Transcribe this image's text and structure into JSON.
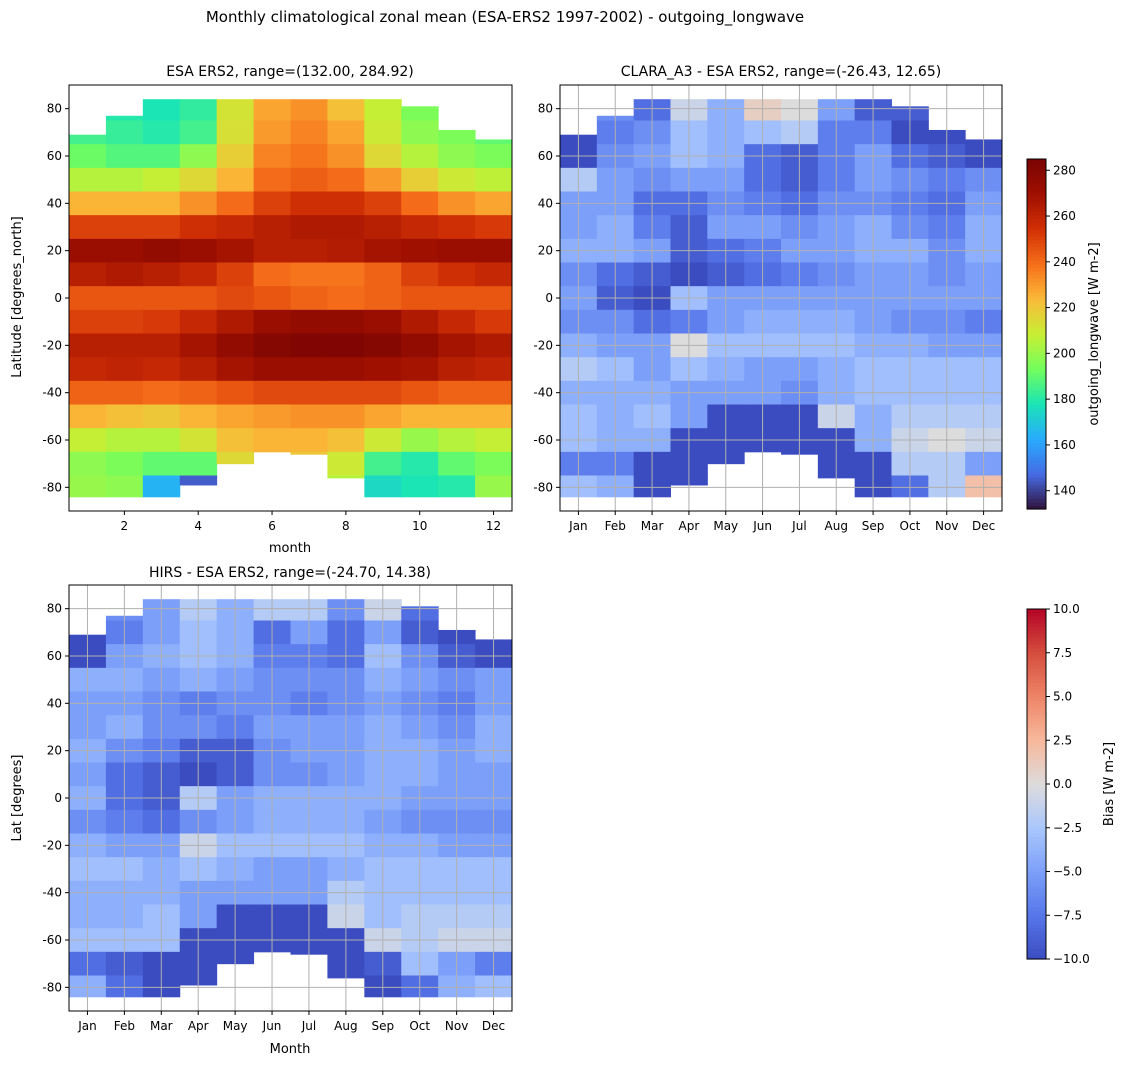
{
  "figure_title": "Monthly climatological zonal mean (ESA-ERS2 1997-2002) - outgoing_longwave",
  "chart_data": [
    {
      "type": "heatmap",
      "title": "ESA ERS2, range=(132.00, 284.92)",
      "xlabel": "month",
      "ylabel": "Latitude [degrees_north]",
      "x": [
        1,
        2,
        3,
        4,
        5,
        6,
        7,
        8,
        9,
        10,
        11,
        12
      ],
      "xticks": [
        2,
        4,
        6,
        8,
        10,
        12
      ],
      "xtick_labels": [
        "2",
        "4",
        "6",
        "8",
        "10",
        "12"
      ],
      "xlim": [
        0.5,
        12.5
      ],
      "ylim": [
        -90,
        90
      ],
      "yticks": [
        80,
        60,
        40,
        20,
        0,
        -20,
        -40,
        -60,
        -80
      ],
      "grid": false,
      "colormap": "turbo",
      "vmin": 132.0,
      "vmax": 284.92,
      "lat_top": [
        69,
        77,
        84,
        84,
        84,
        84,
        84,
        84,
        84,
        81,
        71,
        67
      ],
      "lat_bottom": [
        -84,
        -84,
        -84,
        -79,
        -70,
        -65,
        -66,
        -76,
        -84,
        -84,
        -84,
        -84
      ],
      "lat": [
        80,
        70,
        60,
        50,
        40,
        30,
        20,
        10,
        0,
        -10,
        -20,
        -30,
        -40,
        -50,
        -60,
        -70,
        -80
      ],
      "values": [
        [
          null,
          180,
          178,
          182,
          212,
          228,
          232,
          222,
          208,
          195,
          null,
          null
        ],
        [
          185,
          183,
          180,
          185,
          213,
          230,
          235,
          228,
          210,
          198,
          195,
          190
        ],
        [
          192,
          188,
          188,
          198,
          218,
          235,
          238,
          232,
          215,
          205,
          198,
          195
        ],
        [
          205,
          205,
          208,
          215,
          225,
          240,
          243,
          240,
          230,
          218,
          210,
          207
        ],
        [
          225,
          225,
          225,
          232,
          240,
          250,
          255,
          255,
          250,
          240,
          232,
          228
        ],
        [
          250,
          250,
          250,
          255,
          258,
          262,
          265,
          265,
          262,
          258,
          255,
          252
        ],
        [
          272,
          272,
          275,
          272,
          268,
          262,
          262,
          264,
          268,
          270,
          272,
          272
        ],
        [
          262,
          265,
          262,
          258,
          250,
          240,
          238,
          238,
          242,
          250,
          255,
          258
        ],
        [
          245,
          245,
          245,
          245,
          248,
          245,
          242,
          240,
          242,
          245,
          245,
          245
        ],
        [
          250,
          250,
          252,
          258,
          265,
          272,
          275,
          275,
          272,
          265,
          258,
          252
        ],
        [
          262,
          262,
          262,
          268,
          275,
          280,
          282,
          282,
          280,
          275,
          268,
          265
        ],
        [
          258,
          260,
          258,
          262,
          268,
          272,
          272,
          272,
          270,
          268,
          262,
          260
        ],
        [
          242,
          242,
          240,
          242,
          245,
          248,
          248,
          248,
          248,
          245,
          242,
          242
        ],
        [
          225,
          222,
          220,
          225,
          228,
          230,
          232,
          232,
          228,
          225,
          225,
          225
        ],
        [
          208,
          205,
          205,
          212,
          222,
          225,
          225,
          222,
          210,
          200,
          205,
          208
        ],
        [
          198,
          195,
          190,
          190,
          215,
          null,
          220,
          210,
          185,
          180,
          190,
          195
        ],
        [
          200,
          198,
          165,
          145,
          null,
          null,
          null,
          205,
          175,
          178,
          180,
          200
        ]
      ]
    },
    {
      "type": "heatmap",
      "title": "CLARA_A3 - ESA ERS2, range=(-26.43, 12.65)",
      "xlabel": "",
      "ylabel": "",
      "x": [
        1,
        2,
        3,
        4,
        5,
        6,
        7,
        8,
        9,
        10,
        11,
        12
      ],
      "xticks": [
        1,
        2,
        3,
        4,
        5,
        6,
        7,
        8,
        9,
        10,
        11,
        12
      ],
      "xtick_labels": [
        "Jan",
        "Feb",
        "Mar",
        "Apr",
        "May",
        "Jun",
        "Jul",
        "Aug",
        "Sep",
        "Oct",
        "Nov",
        "Dec"
      ],
      "xlim": [
        0.5,
        12.5
      ],
      "ylim": [
        -90,
        90
      ],
      "yticks": [
        80,
        60,
        40,
        20,
        0,
        -20,
        -40,
        -60,
        -80
      ],
      "grid": true,
      "colormap": "coolwarm",
      "vmin": -10,
      "vmax": 10,
      "lat_top": [
        69,
        77,
        84,
        84,
        84,
        84,
        84,
        84,
        84,
        81,
        71,
        67
      ],
      "lat_bottom": [
        -84,
        -84,
        -84,
        -79,
        -70,
        -65,
        -66,
        -76,
        -84,
        -84,
        -84,
        -84
      ],
      "lat": [
        80,
        70,
        60,
        50,
        40,
        30,
        20,
        10,
        0,
        -10,
        -20,
        -30,
        -40,
        -50,
        -60,
        -70,
        -80
      ],
      "values": [
        [
          null,
          -6,
          -8,
          -1,
          -4,
          1,
          0,
          -5,
          -9,
          -9,
          null,
          null
        ],
        [
          -10,
          -7,
          -6,
          -3,
          -4,
          -3,
          -2,
          -7,
          -7,
          -10,
          -10,
          -10
        ],
        [
          -10,
          -6,
          -5,
          -3,
          -4,
          -8,
          -9,
          -7,
          -5,
          -8,
          -9,
          -10
        ],
        [
          -2,
          -5,
          -6,
          -5,
          -5,
          -8,
          -9,
          -7,
          -5,
          -6,
          -7,
          -6
        ],
        [
          -5,
          -5,
          -8,
          -8,
          -6,
          -7,
          -8,
          -6,
          -6,
          -7,
          -8,
          -5
        ],
        [
          -5,
          -4,
          -7,
          -9,
          -5,
          -5,
          -6,
          -5,
          -4,
          -6,
          -7,
          -4
        ],
        [
          -4,
          -4,
          -5,
          -9,
          -8,
          -7,
          -5,
          -5,
          -4,
          -4,
          -6,
          -4
        ],
        [
          -6,
          -8,
          -9,
          -10,
          -9,
          -8,
          -7,
          -6,
          -5,
          -5,
          -6,
          -5
        ],
        [
          -5,
          -9,
          -10,
          -3,
          -5,
          -5,
          -5,
          -5,
          -5,
          -5,
          -5,
          -5
        ],
        [
          -6,
          -6,
          -8,
          -7,
          -5,
          -4,
          -4,
          -4,
          -5,
          -6,
          -6,
          -7
        ],
        [
          -4,
          -5,
          -5,
          0,
          -3,
          -3,
          -3,
          -3,
          -4,
          -4,
          -5,
          -5
        ],
        [
          -2,
          -3,
          -5,
          -3,
          -4,
          -5,
          -5,
          -4,
          -3,
          -3,
          -3,
          -3
        ],
        [
          -4,
          -4,
          -4,
          -5,
          -5,
          -5,
          -6,
          -4,
          -3,
          -3,
          -3,
          -3
        ],
        [
          -3,
          -4,
          -3,
          -5,
          -10,
          -10,
          -10,
          -1,
          -4,
          -2,
          -2,
          -2
        ],
        [
          -3,
          -4,
          -4,
          -10,
          -10,
          -10,
          -10,
          -10,
          -4,
          -1,
          0,
          -1
        ],
        [
          -7,
          -7,
          -10,
          -10,
          -10,
          null,
          -10,
          -10,
          -10,
          -2,
          -2,
          -5
        ],
        [
          -3,
          -4,
          -10,
          -10,
          null,
          null,
          null,
          -10,
          -10,
          -8,
          -2,
          2
        ]
      ]
    },
    {
      "type": "heatmap",
      "title": "HIRS - ESA ERS2, range=(-24.70, 14.38)",
      "xlabel": "Month",
      "ylabel": "Lat [degrees]",
      "x": [
        1,
        2,
        3,
        4,
        5,
        6,
        7,
        8,
        9,
        10,
        11,
        12
      ],
      "xticks": [
        1,
        2,
        3,
        4,
        5,
        6,
        7,
        8,
        9,
        10,
        11,
        12
      ],
      "xtick_labels": [
        "Jan",
        "Feb",
        "Mar",
        "Apr",
        "May",
        "Jun",
        "Jul",
        "Aug",
        "Sep",
        "Oct",
        "Nov",
        "Dec"
      ],
      "xlim": [
        0.5,
        12.5
      ],
      "ylim": [
        -90,
        90
      ],
      "yticks": [
        80,
        60,
        40,
        20,
        0,
        -20,
        -40,
        -60,
        -80
      ],
      "grid": true,
      "colormap": "coolwarm",
      "vmin": -10,
      "vmax": 10,
      "lat_top": [
        69,
        77,
        84,
        84,
        84,
        84,
        84,
        84,
        84,
        81,
        71,
        67
      ],
      "lat_bottom": [
        -84,
        -84,
        -84,
        -79,
        -70,
        -65,
        -66,
        -76,
        -84,
        -84,
        -84,
        -84
      ],
      "lat": [
        80,
        70,
        60,
        50,
        40,
        30,
        20,
        10,
        0,
        -10,
        -20,
        -30,
        -40,
        -50,
        -60,
        -70,
        -80
      ],
      "values": [
        [
          null,
          -6,
          -5,
          -2,
          -4,
          -2,
          -2,
          -6,
          -1,
          -8,
          null,
          null
        ],
        [
          -10,
          -7,
          -5,
          -3,
          -4,
          -8,
          -5,
          -8,
          -5,
          -9,
          -10,
          -10
        ],
        [
          -10,
          -5,
          -4,
          -3,
          -4,
          -7,
          -7,
          -8,
          -3,
          -6,
          -9,
          -10
        ],
        [
          -4,
          -4,
          -5,
          -4,
          -5,
          -6,
          -6,
          -6,
          -4,
          -5,
          -6,
          -5
        ],
        [
          -5,
          -5,
          -6,
          -7,
          -6,
          -6,
          -7,
          -6,
          -5,
          -6,
          -7,
          -5
        ],
        [
          -5,
          -4,
          -6,
          -6,
          -7,
          -5,
          -5,
          -5,
          -4,
          -5,
          -6,
          -4
        ],
        [
          -4,
          -6,
          -7,
          -9,
          -9,
          -6,
          -5,
          -5,
          -4,
          -4,
          -5,
          -4
        ],
        [
          -5,
          -8,
          -9,
          -10,
          -9,
          -6,
          -6,
          -5,
          -4,
          -4,
          -5,
          -5
        ],
        [
          -4,
          -8,
          -9,
          -2,
          -5,
          -4,
          -4,
          -4,
          -4,
          -5,
          -5,
          -5
        ],
        [
          -6,
          -7,
          -8,
          -6,
          -5,
          -4,
          -4,
          -4,
          -5,
          -6,
          -6,
          -6
        ],
        [
          -4,
          -5,
          -5,
          -1,
          -3,
          -3,
          -3,
          -3,
          -4,
          -4,
          -5,
          -5
        ],
        [
          -3,
          -3,
          -4,
          -3,
          -4,
          -5,
          -5,
          -4,
          -3,
          -3,
          -3,
          -3
        ],
        [
          -4,
          -4,
          -4,
          -5,
          -5,
          -5,
          -5,
          -2,
          -3,
          -3,
          -3,
          -3
        ],
        [
          -4,
          -4,
          -3,
          -5,
          -10,
          -10,
          -10,
          -1,
          -3,
          -2,
          -2,
          -2
        ],
        [
          -3,
          -3,
          -3,
          -10,
          -10,
          -10,
          -10,
          -10,
          -1,
          -2,
          -1,
          -1
        ],
        [
          -8,
          -9,
          -10,
          -10,
          -10,
          null,
          -10,
          -10,
          -9,
          -3,
          -5,
          -7
        ],
        [
          -4,
          -8,
          -10,
          -10,
          null,
          null,
          null,
          -10,
          -10,
          -8,
          -4,
          -3
        ]
      ]
    }
  ],
  "colorbars": [
    {
      "label": "outgoing_longwave [W m-2]",
      "colormap": "turbo",
      "vmin": 132.0,
      "vmax": 284.92,
      "ticks": [
        140,
        160,
        180,
        200,
        220,
        240,
        260,
        280
      ],
      "tick_labels": [
        "140",
        "160",
        "180",
        "200",
        "220",
        "240",
        "260",
        "280"
      ]
    },
    {
      "label": "Bias [W m-2]",
      "colormap": "coolwarm",
      "vmin": -10,
      "vmax": 10,
      "ticks": [
        -10,
        -7.5,
        -5,
        -2.5,
        0,
        2.5,
        5,
        7.5,
        10
      ],
      "tick_labels": [
        "−10.0",
        "−7.5",
        "−5.0",
        "−2.5",
        "0.0",
        "2.5",
        "5.0",
        "7.5",
        "10.0"
      ]
    }
  ],
  "colors": {
    "grid": "#b0b0b0",
    "axes": "#000000"
  }
}
